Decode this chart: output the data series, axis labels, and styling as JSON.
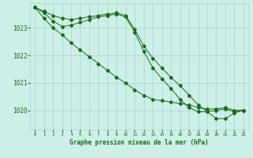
{
  "bg_color": "#ceeee8",
  "grid_color": "#a8d8d0",
  "line_color": "#1a6b1a",
  "marker_color": "#1a6b1a",
  "xlabel": "Graphe pression niveau de la mer (hPa)",
  "xlabel_color": "#1a6b1a",
  "tick_color": "#1a6b1a",
  "ylim": [
    1019.3,
    1023.9
  ],
  "xlim": [
    -0.5,
    23.5
  ],
  "yticks": [
    1020,
    1021,
    1022,
    1023
  ],
  "xticks": [
    0,
    1,
    2,
    3,
    4,
    5,
    6,
    7,
    8,
    9,
    10,
    11,
    12,
    13,
    14,
    15,
    16,
    17,
    18,
    19,
    20,
    21,
    22,
    23
  ],
  "series1_x": [
    0,
    1,
    2,
    3,
    4,
    5,
    6,
    7,
    8,
    9,
    10,
    11,
    12,
    13,
    14,
    15,
    16,
    17,
    18,
    19,
    20,
    21,
    22,
    23
  ],
  "series1_y": [
    1023.75,
    1023.6,
    1023.45,
    1023.35,
    1023.3,
    1023.35,
    1023.4,
    1023.45,
    1023.5,
    1023.55,
    1023.45,
    1022.95,
    1022.35,
    1021.9,
    1021.55,
    1021.2,
    1020.9,
    1020.55,
    1020.2,
    1019.95,
    1019.7,
    1019.7,
    1019.9,
    1020.0
  ],
  "series2_x": [
    0,
    1,
    2,
    3,
    4,
    5,
    6,
    7,
    8,
    9,
    10,
    11,
    12,
    13,
    14,
    15,
    16,
    17,
    18,
    19,
    20,
    21,
    22,
    23
  ],
  "series2_y": [
    1023.75,
    1023.55,
    1023.25,
    1023.05,
    1023.1,
    1023.2,
    1023.3,
    1023.4,
    1023.45,
    1023.5,
    1023.4,
    1022.85,
    1022.15,
    1021.55,
    1021.15,
    1020.8,
    1020.4,
    1020.1,
    1019.95,
    1019.95,
    1020.0,
    1020.05,
    1019.95,
    1020.0
  ],
  "series3_x": [
    0,
    1,
    2,
    3,
    4,
    5,
    6,
    7,
    8,
    9,
    10,
    11,
    12,
    13,
    14,
    15,
    16,
    17,
    18,
    19,
    20,
    21,
    22,
    23
  ],
  "series3_y": [
    1023.75,
    1023.35,
    1023.0,
    1022.75,
    1022.45,
    1022.2,
    1021.95,
    1021.7,
    1021.45,
    1021.2,
    1021.0,
    1020.75,
    1020.55,
    1020.4,
    1020.35,
    1020.3,
    1020.25,
    1020.2,
    1020.1,
    1020.05,
    1020.05,
    1020.1,
    1020.0,
    1020.0
  ]
}
